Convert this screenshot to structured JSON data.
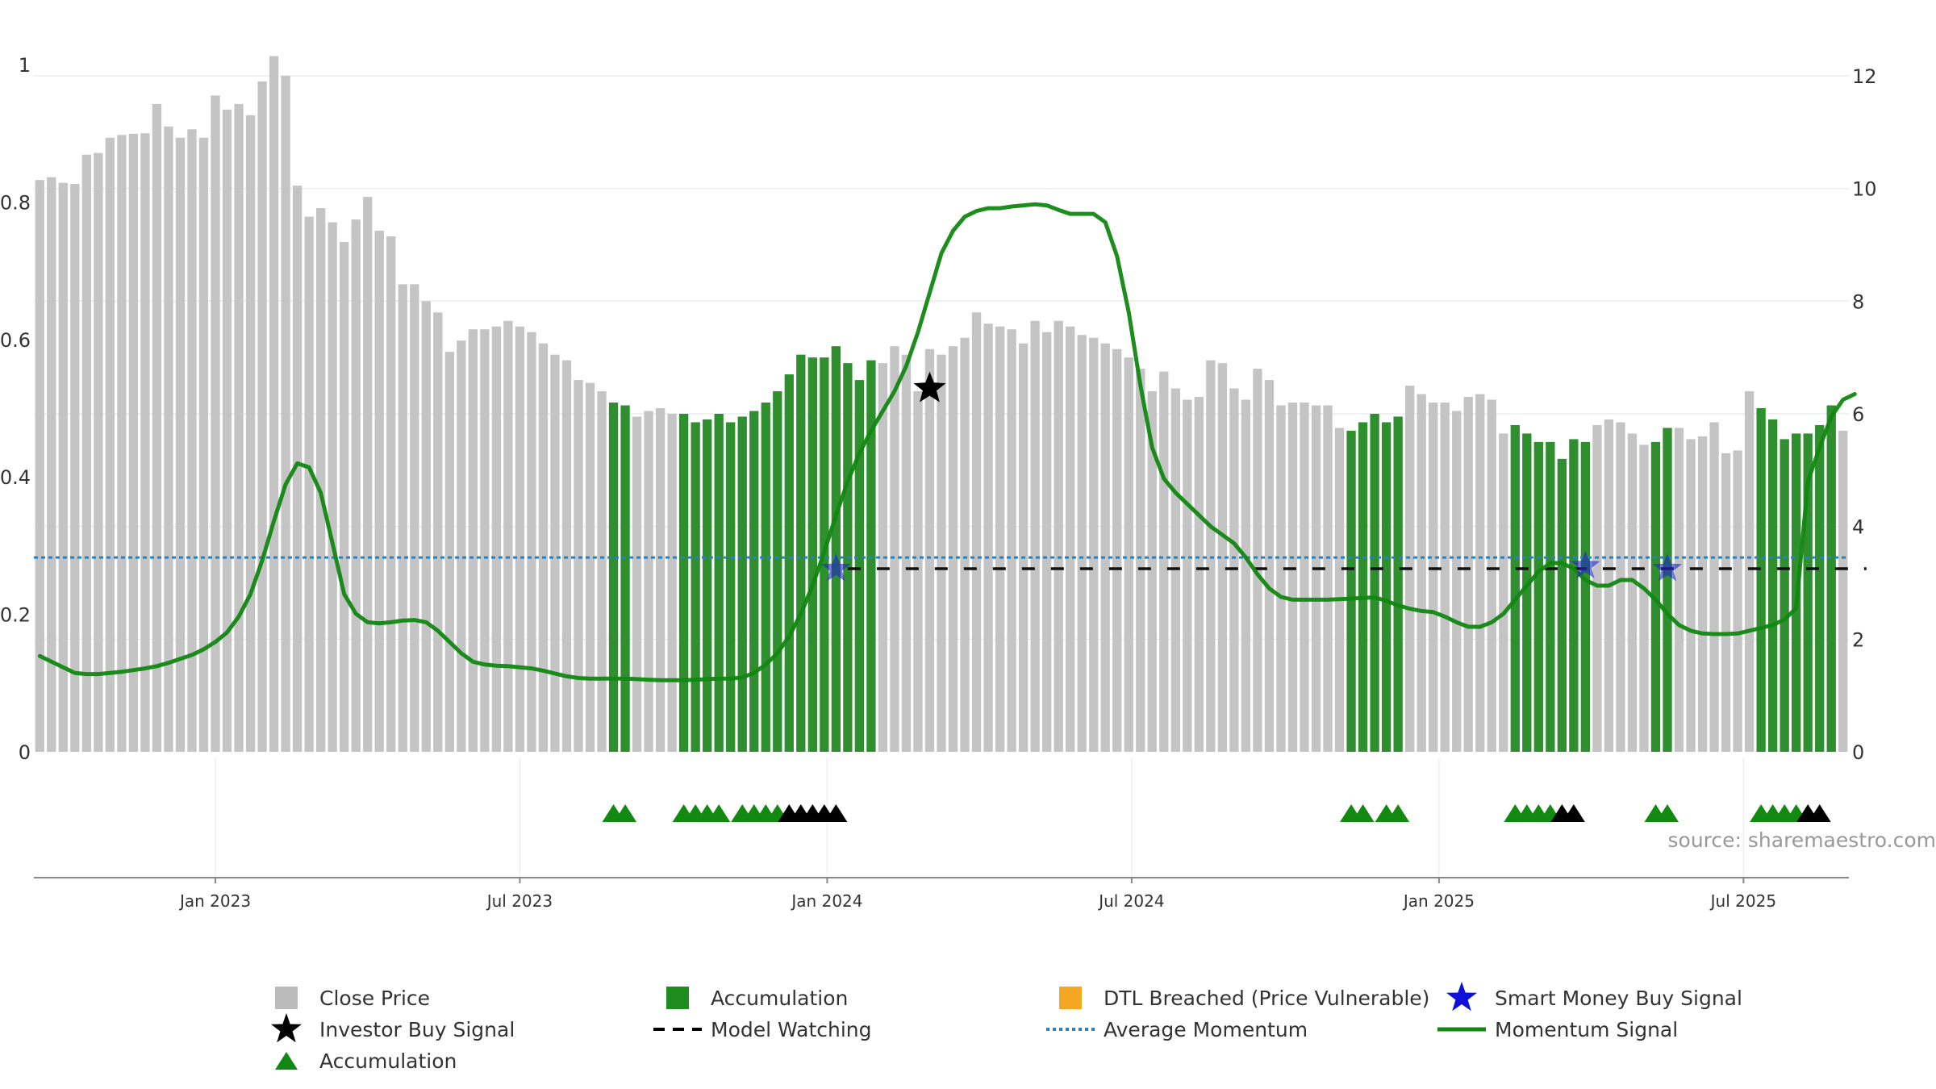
{
  "chart_data": {
    "type": "bar",
    "source_label": "source: sharemaestro.com",
    "y_left": {
      "ticks": [
        "0",
        "0.2",
        "0.4",
        "0.6",
        "0.8",
        "1"
      ],
      "range": [
        0,
        1
      ]
    },
    "y_right": {
      "ticks": [
        "0",
        "2",
        "4",
        "6",
        "8",
        "10",
        "12"
      ],
      "range": [
        0,
        12.2
      ]
    },
    "x_ticks": [
      {
        "label": "Jan 2023",
        "idx": 15.5
      },
      {
        "label": "Jul 2023",
        "idx": 41.5
      },
      {
        "label": "Jan 2024",
        "idx": 67.75
      },
      {
        "label": "Jul 2024",
        "idx": 93.75
      },
      {
        "label": "Jan 2025",
        "idx": 120.0
      },
      {
        "label": "Jul 2025",
        "idx": 146.0
      }
    ],
    "close_price": [
      10.15,
      10.2,
      10.1,
      10.08,
      10.6,
      10.63,
      10.9,
      10.95,
      10.97,
      10.98,
      11.5,
      11.1,
      10.9,
      11.05,
      10.9,
      11.65,
      11.4,
      11.5,
      11.3,
      11.9,
      12.35,
      12.0,
      10.05,
      9.5,
      9.65,
      9.4,
      9.05,
      9.45,
      9.85,
      9.25,
      9.15,
      8.3,
      8.3,
      8.0,
      7.8,
      7.1,
      7.3,
      7.5,
      7.5,
      7.55,
      7.65,
      7.55,
      7.45,
      7.25,
      7.05,
      6.95,
      6.6,
      6.55,
      6.4,
      6.2,
      6.15,
      5.95,
      6.05,
      6.1,
      6.0,
      6.0,
      5.85,
      5.9,
      6.0,
      5.85,
      5.95,
      6.05,
      6.2,
      6.4,
      6.7,
      7.05,
      7.0,
      7.0,
      7.2,
      6.9,
      6.6,
      6.95,
      6.9,
      7.2,
      7.05,
      6.4,
      7.15,
      7.05,
      7.2,
      7.35,
      7.8,
      7.6,
      7.55,
      7.5,
      7.25,
      7.65,
      7.45,
      7.65,
      7.55,
      7.4,
      7.35,
      7.25,
      7.15,
      7.0,
      6.8,
      6.4,
      6.75,
      6.45,
      6.25,
      6.3,
      6.95,
      6.9,
      6.45,
      6.25,
      6.8,
      6.6,
      6.15,
      6.2,
      6.2,
      6.15,
      6.15,
      5.75,
      5.7,
      5.85,
      6.0,
      5.85,
      5.95,
      6.5,
      6.35,
      6.2,
      6.2,
      6.05,
      6.3,
      6.35,
      6.25,
      5.65,
      5.8,
      5.65,
      5.5,
      5.5,
      5.2,
      5.55,
      5.5,
      5.8,
      5.9,
      5.85,
      5.65,
      5.45,
      5.5,
      5.75,
      5.75,
      5.55,
      5.6,
      5.85,
      5.3,
      5.35,
      6.4,
      6.1,
      5.9,
      5.55,
      5.65,
      5.65,
      5.8,
      6.15,
      5.7
    ],
    "accumulation_bars": [
      49,
      50,
      55,
      56,
      57,
      58,
      59,
      60,
      61,
      62,
      63,
      64,
      65,
      66,
      67,
      68,
      69,
      70,
      71,
      112,
      113,
      114,
      115,
      116,
      126,
      127,
      128,
      129,
      130,
      131,
      132,
      138,
      139,
      147,
      148,
      149,
      150,
      151,
      152,
      153
    ],
    "momentum_signal": [
      1.7,
      1.6,
      1.5,
      1.4,
      1.38,
      1.38,
      1.4,
      1.42,
      1.45,
      1.48,
      1.52,
      1.58,
      1.65,
      1.72,
      1.82,
      1.95,
      2.12,
      2.4,
      2.8,
      3.4,
      4.1,
      4.75,
      5.12,
      5.05,
      4.6,
      3.7,
      2.8,
      2.45,
      2.3,
      2.28,
      2.3,
      2.33,
      2.34,
      2.3,
      2.15,
      1.95,
      1.75,
      1.6,
      1.55,
      1.53,
      1.52,
      1.5,
      1.48,
      1.44,
      1.39,
      1.34,
      1.31,
      1.3,
      1.3,
      1.3,
      1.3,
      1.29,
      1.28,
      1.27,
      1.27,
      1.27,
      1.28,
      1.29,
      1.3,
      1.3,
      1.32,
      1.4,
      1.55,
      1.75,
      2.05,
      2.45,
      2.95,
      3.55,
      4.2,
      4.8,
      5.3,
      5.7,
      6.05,
      6.4,
      6.85,
      7.45,
      8.15,
      8.85,
      9.25,
      9.5,
      9.6,
      9.65,
      9.65,
      9.68,
      9.7,
      9.72,
      9.7,
      9.62,
      9.55,
      9.55,
      9.55,
      9.4,
      8.8,
      7.8,
      6.5,
      5.4,
      4.85,
      4.6,
      4.4,
      4.2,
      4.0,
      3.85,
      3.7,
      3.45,
      3.15,
      2.9,
      2.75,
      2.7,
      2.7,
      2.7,
      2.7,
      2.71,
      2.72,
      2.73,
      2.74,
      2.68,
      2.6,
      2.54,
      2.5,
      2.48,
      2.4,
      2.3,
      2.22,
      2.22,
      2.3,
      2.45,
      2.7,
      2.95,
      3.2,
      3.35,
      3.35,
      3.25,
      3.05,
      2.95,
      2.95,
      3.05,
      3.05,
      2.9,
      2.7,
      2.45,
      2.25,
      2.15,
      2.1,
      2.09,
      2.09,
      2.1,
      2.15,
      2.2,
      2.25,
      2.35,
      2.55,
      4.8,
      5.4,
      5.95,
      6.25,
      6.35
    ],
    "average_momentum": 3.45,
    "model_watching": {
      "from": 69,
      "to": 156,
      "value": 3.25
    },
    "investor_buy_signals": [
      {
        "idx": 76,
        "value": 6.45
      }
    ],
    "smart_money_buy_signals": [
      {
        "idx": 68.5,
        "value": 3.25
      },
      {
        "idx": 132.5,
        "value": 3.3
      },
      {
        "idx": 139.5,
        "value": 3.25
      }
    ],
    "triangle_markers": {
      "green": [
        49.5,
        50.5,
        55.5,
        56.5,
        57.5,
        58.5,
        60.5,
        61.5,
        62.5,
        63.5,
        112.5,
        113.5,
        115.5,
        116.5,
        126.5,
        127.5,
        128.5,
        129.5,
        138.5,
        139.5,
        147.5,
        148.5,
        149.5,
        150.5
      ],
      "black": [
        64.5,
        65.5,
        66.5,
        67.5,
        68.5,
        130.5,
        131.5,
        151.5,
        152.5
      ]
    },
    "legend": [
      {
        "label": "Close Price",
        "symbol": "square",
        "color": "#bbbbbb"
      },
      {
        "label": "Accumulation",
        "symbol": "square",
        "color": "#1e8c1e"
      },
      {
        "label": "DTL Breached (Price Vulnerable)",
        "symbol": "square",
        "color": "#f5a623"
      },
      {
        "label": "Smart Money Buy Signal",
        "symbol": "star",
        "color": "#1010dd"
      },
      {
        "label": "Investor Buy Signal",
        "symbol": "star",
        "color": "#000000"
      },
      {
        "label": "Model Watching",
        "symbol": "dash",
        "color": "#000000"
      },
      {
        "label": "Average Momentum",
        "symbol": "dot",
        "color": "#2f7fb8"
      },
      {
        "label": "Momentum Signal",
        "symbol": "line",
        "color": "#118811"
      },
      {
        "label": "Accumulation",
        "symbol": "triangle",
        "color": "#118811"
      }
    ],
    "colors": {
      "close": "#c4c4c4",
      "accumulation": "#2f8f2f",
      "momentum": "#118811",
      "avg": "#2f7fb8",
      "grid": "#e8eeee"
    }
  }
}
